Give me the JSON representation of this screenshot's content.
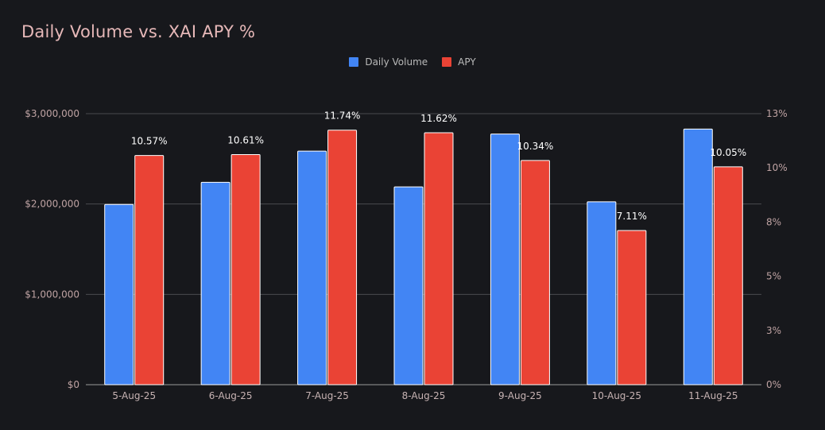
{
  "chart_data": {
    "type": "bar",
    "title": "Daily Volume vs. XAI APY %",
    "categories": [
      "5-Aug-25",
      "6-Aug-25",
      "7-Aug-25",
      "8-Aug-25",
      "9-Aug-25",
      "10-Aug-25",
      "11-Aug-25"
    ],
    "series": [
      {
        "name": "Daily Volume",
        "axis": "left",
        "color": "#4285f4",
        "values": [
          1995000,
          2240000,
          2585000,
          2190000,
          2775000,
          2025000,
          2830000
        ]
      },
      {
        "name": "APY",
        "axis": "right",
        "color": "#ea4335",
        "values": [
          10.57,
          10.61,
          11.74,
          11.62,
          10.34,
          7.11,
          10.05
        ],
        "labels": [
          "10.57%",
          "10.61%",
          "11.74%",
          "11.62%",
          "10.34%",
          "7.11%",
          "10.05%"
        ]
      }
    ],
    "y_left": {
      "range": [
        0,
        3000000
      ],
      "ticks": [
        0,
        1000000,
        2000000,
        3000000
      ],
      "tick_labels": [
        "$0",
        "$1,000,000",
        "$2,000,000",
        "$3,000,000"
      ]
    },
    "y_right": {
      "range": [
        0,
        12.5
      ],
      "ticks": [
        0,
        2.5,
        5,
        7.5,
        10,
        12.5
      ],
      "tick_labels": [
        "0%",
        "3%",
        "5%",
        "8%",
        "10%",
        "13%"
      ]
    },
    "grid": true,
    "legend": "top-center",
    "background": "#17181c"
  }
}
